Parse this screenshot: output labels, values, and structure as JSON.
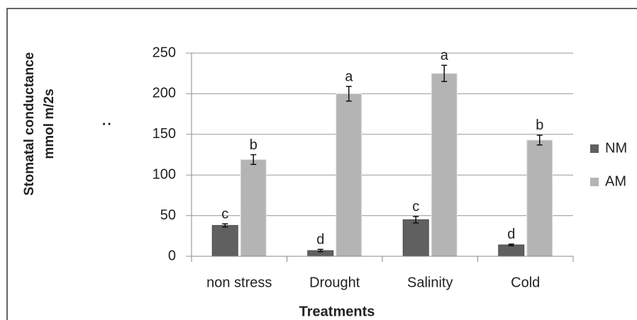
{
  "chart_data": {
    "type": "bar",
    "y_label": [
      "Stomatal conductance",
      "mmol m/2s"
    ],
    "y_note": ":",
    "x_label": "Treatments",
    "categories": [
      "non stress",
      "Drought",
      "Salinity",
      "Cold"
    ],
    "series": [
      {
        "name": "NM",
        "color": "#606060",
        "values": [
          38,
          7,
          45,
          14
        ],
        "errors": [
          2,
          1.5,
          4,
          1
        ],
        "letters": [
          "c",
          "d",
          "c",
          "d"
        ]
      },
      {
        "name": "AM",
        "color": "#b4b4b4",
        "values": [
          119,
          200,
          225,
          143
        ],
        "errors": [
          6,
          9,
          10,
          6
        ],
        "letters": [
          "b",
          "a",
          "a",
          "b"
        ]
      }
    ],
    "ylim": [
      0,
      250
    ],
    "yticks": [
      0,
      50,
      100,
      150,
      200,
      250
    ],
    "grid": true,
    "legend": "right"
  }
}
